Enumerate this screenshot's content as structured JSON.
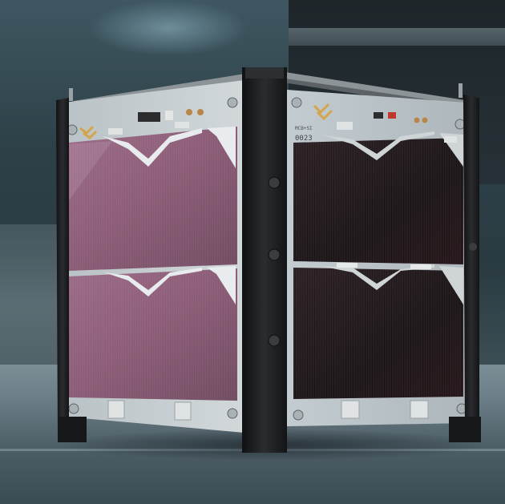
{
  "scene": {
    "subject": "cubesat",
    "background_color": "#2f3d44",
    "left_panel_color": "#8a5a74",
    "right_panel_color": "#1a1416",
    "frame_color": "#1b1c1e",
    "pcb_color": "#c9d0d2"
  },
  "labels": {
    "pcb_serial": "0023",
    "pcb_small_code": "MCB+SI"
  },
  "icons": {
    "logo": "chevron-logo-icon",
    "screw": "screw-icon",
    "rail": "rail-icon"
  }
}
